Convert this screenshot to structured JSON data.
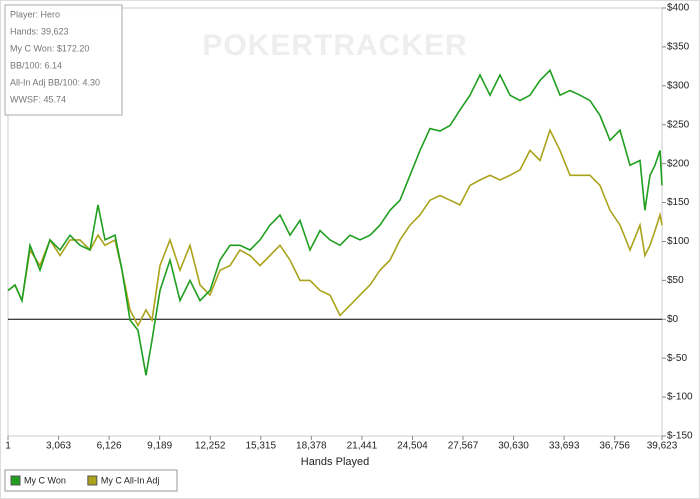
{
  "chart_data": {
    "type": "line",
    "watermark": "POKERTRACKER",
    "info": [
      "Player: Hero",
      "Hands: 39,623",
      "My C Won: $172.20",
      "BB/100: 6.14",
      "All-In Adj BB/100: 4.30",
      "WWSF: 45.74"
    ],
    "x_label": "Hands Played",
    "x": [
      1,
      425,
      849,
      1334,
      1940,
      2545,
      3151,
      3757,
      4363,
      4969,
      5453,
      5877,
      6483,
      6907,
      7392,
      7877,
      8361,
      8725,
      9209,
      9815,
      10421,
      11027,
      11632,
      12238,
      12844,
      13450,
      14056,
      14661,
      15267,
      15873,
      16479,
      17085,
      17690,
      18296,
      18902,
      19508,
      20114,
      20719,
      21325,
      21931,
      22537,
      23143,
      23748,
      24354,
      24960,
      25566,
      26172,
      26777,
      27383,
      27989,
      28595,
      29201,
      29806,
      30412,
      31018,
      31624,
      32230,
      32835,
      33441,
      34047,
      34653,
      35259,
      35864,
      36470,
      37076,
      37682,
      38288,
      38590,
      38893,
      39196,
      39499,
      39623
    ],
    "series": [
      {
        "name": "My C Won",
        "color": "#1f9e1f",
        "values": [
          37,
          44,
          24,
          95,
          63,
          102,
          89,
          108,
          95,
          89,
          147,
          102,
          108,
          63,
          -1,
          -14,
          -72,
          -27,
          37,
          76,
          24,
          50,
          24,
          37,
          76,
          95,
          95,
          89,
          102,
          121,
          134,
          108,
          127,
          89,
          114,
          102,
          95,
          108,
          102,
          108,
          121,
          140,
          153,
          185,
          217,
          245,
          242,
          249,
          269,
          288,
          314,
          288,
          314,
          288,
          281,
          288,
          307,
          320,
          288,
          294,
          288,
          281,
          262,
          230,
          243,
          198,
          204,
          140,
          185,
          198,
          217,
          172.2
        ]
      },
      {
        "name": "My C All-In Adj",
        "color": "#aaa31b",
        "values": [
          37,
          44,
          24,
          89,
          69,
          102,
          82,
          102,
          102,
          89,
          108,
          95,
          102,
          63,
          12,
          -8,
          12,
          -1,
          69,
          102,
          63,
          95,
          44,
          31,
          63,
          69,
          89,
          82,
          69,
          82,
          95,
          76,
          50,
          50,
          37,
          31,
          5,
          18,
          31,
          44,
          63,
          76,
          102,
          121,
          134,
          153,
          159,
          153,
          147,
          172,
          179,
          185,
          179,
          185,
          192,
          217,
          204,
          243,
          217,
          185,
          185,
          185,
          172,
          140,
          121,
          89,
          121,
          82,
          95,
          114,
          134,
          121
        ]
      }
    ],
    "xlim": [
      1,
      39623
    ],
    "xticks": [
      1,
      {
        "value": 3063,
        "label": "3,063"
      },
      {
        "value": 6126,
        "label": "6,126"
      },
      {
        "value": 9189,
        "label": "9,189"
      },
      {
        "value": 12252,
        "label": "12,252"
      },
      {
        "value": 15315,
        "label": "15,315"
      },
      {
        "value": 18378,
        "label": "18,378"
      },
      {
        "value": 21441,
        "label": "21,441"
      },
      {
        "value": 24504,
        "label": "24,504"
      },
      {
        "value": 27567,
        "label": "27,567"
      },
      {
        "value": 30630,
        "label": "30,630"
      },
      {
        "value": 33693,
        "label": "33,693"
      },
      {
        "value": 36756,
        "label": "36,756"
      },
      {
        "value": 39623,
        "label": "39,623"
      }
    ],
    "ylim": [
      -150,
      400
    ],
    "yticks": [
      {
        "value": -150,
        "label": "$-150"
      },
      {
        "value": -100,
        "label": "$-100"
      },
      {
        "value": -50,
        "label": "$-50"
      },
      {
        "value": 0,
        "label": "$0"
      },
      {
        "value": 50,
        "label": "$50"
      },
      {
        "value": 100,
        "label": "$100"
      },
      {
        "value": 150,
        "label": "$150"
      },
      {
        "value": 200,
        "label": "$200"
      },
      {
        "value": 250,
        "label": "$250"
      },
      {
        "value": 300,
        "label": "$300"
      },
      {
        "value": 350,
        "label": "$350"
      },
      {
        "value": 400,
        "label": "$400"
      }
    ],
    "grid": false
  }
}
